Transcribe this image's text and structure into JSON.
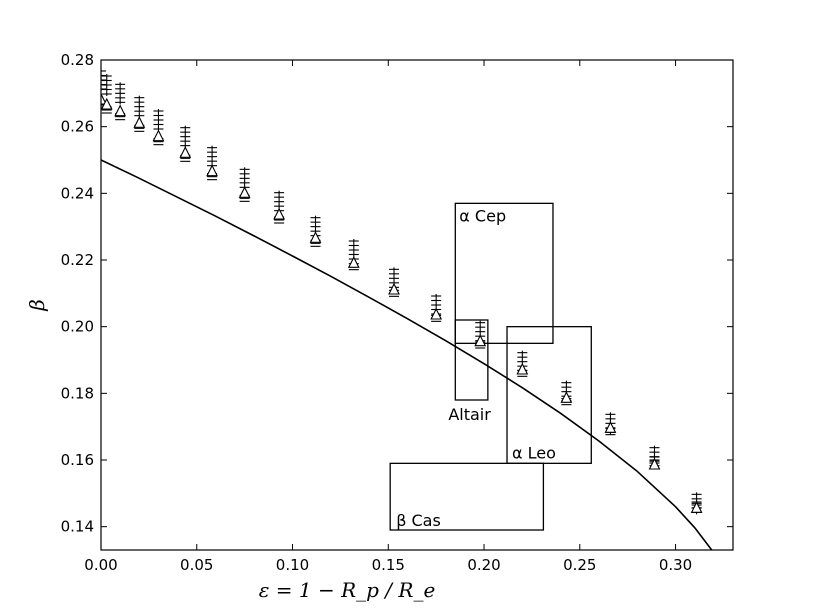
{
  "chart_data": {
    "type": "scatter",
    "xlabel": "ε = 1 − R_p / R_e",
    "ylabel": "β",
    "xlim": [
      0.0,
      0.33
    ],
    "ylim": [
      0.133,
      0.28
    ],
    "xticks": [
      0.0,
      0.05,
      0.1,
      0.15,
      0.2,
      0.25,
      0.3
    ],
    "xtick_labels": [
      "0.00",
      "0.05",
      "0.10",
      "0.15",
      "0.20",
      "0.25",
      "0.30"
    ],
    "yticks": [
      0.14,
      0.16,
      0.18,
      0.2,
      0.22,
      0.24,
      0.26,
      0.28
    ],
    "ytick_labels": [
      "0.14",
      "0.16",
      "0.18",
      "0.20",
      "0.22",
      "0.24",
      "0.26",
      "0.28"
    ],
    "grid": false,
    "curve": {
      "x": [
        0.0,
        0.02,
        0.04,
        0.06,
        0.08,
        0.1,
        0.12,
        0.14,
        0.16,
        0.18,
        0.2,
        0.22,
        0.24,
        0.26,
        0.28,
        0.3,
        0.31,
        0.32,
        0.33
      ],
      "y": [
        0.25,
        0.2445,
        0.2388,
        0.2331,
        0.2272,
        0.2212,
        0.2151,
        0.2088,
        0.2024,
        0.1958,
        0.1889,
        0.1817,
        0.174,
        0.1657,
        0.1566,
        0.146,
        0.1397,
        0.1322,
        0.133
      ]
    },
    "plus_series": {
      "x": [
        0.0,
        0.003,
        0.01,
        0.02,
        0.03,
        0.044,
        0.058,
        0.075,
        0.093,
        0.112,
        0.132,
        0.153,
        0.175,
        0.198,
        0.22,
        0.243,
        0.266,
        0.289,
        0.311
      ],
      "y": [
        0.274,
        0.2725,
        0.27,
        0.266,
        0.262,
        0.257,
        0.251,
        0.2445,
        0.2375,
        0.23,
        0.223,
        0.2145,
        0.2065,
        0.1985,
        0.1895,
        0.1805,
        0.171,
        0.161,
        0.147
      ]
    },
    "triangle_series": {
      "x": [
        0.0,
        0.003,
        0.01,
        0.02,
        0.03,
        0.044,
        0.058,
        0.075,
        0.093,
        0.112,
        0.132,
        0.153,
        0.175,
        0.198,
        0.22,
        0.243,
        0.266,
        0.289,
        0.311
      ],
      "y": [
        0.268,
        0.2665,
        0.2645,
        0.261,
        0.257,
        0.252,
        0.2465,
        0.24,
        0.2335,
        0.2265,
        0.219,
        0.211,
        0.2035,
        0.1955,
        0.187,
        0.1785,
        0.1695,
        0.1585,
        0.1455
      ]
    },
    "dash_series": {
      "x": [
        0.0,
        0.003,
        0.01,
        0.02,
        0.03,
        0.044,
        0.058,
        0.075,
        0.093,
        0.112,
        0.132,
        0.153,
        0.175,
        0.198,
        0.22,
        0.243,
        0.266,
        0.289,
        0.311
      ],
      "y": [
        0.2665,
        0.265,
        0.263,
        0.2595,
        0.2555,
        0.2505,
        0.245,
        0.2385,
        0.232,
        0.225,
        0.218,
        0.21,
        0.2025,
        0.1945,
        0.186,
        0.1775,
        0.1685,
        0.16,
        0.1465
      ]
    },
    "boxes": [
      {
        "label": "α Cep",
        "x0": 0.185,
        "x1": 0.236,
        "y0": 0.195,
        "y1": 0.237
      },
      {
        "label": "Altair",
        "x0": 0.185,
        "x1": 0.202,
        "y0": 0.178,
        "y1": 0.202
      },
      {
        "label": "α Leo",
        "x0": 0.212,
        "x1": 0.256,
        "y0": 0.159,
        "y1": 0.2
      },
      {
        "label": "β Cas",
        "x0": 0.151,
        "x1": 0.231,
        "y0": 0.139,
        "y1": 0.159
      }
    ]
  }
}
